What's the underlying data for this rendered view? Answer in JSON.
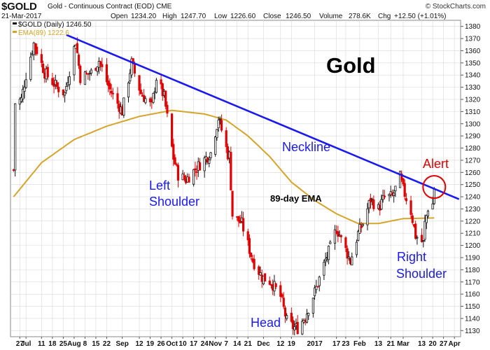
{
  "header": {
    "ticker": "$GOLD",
    "name": "Gold - Continuous Contract (EOD)",
    "exchange": "CME",
    "date": "21-Mar-2017",
    "open_label": "Open",
    "open": "1234.20",
    "high_label": "High",
    "high": "1247.70",
    "low_label": "Low",
    "low": "1226.60",
    "close_label": "Close",
    "close": "1246.50",
    "volume_label": "Volume",
    "volume": "278.6K",
    "chg_label": "Chg",
    "chg": "+12.50 (+1.01%)",
    "credit": "© StockCharts.com"
  },
  "legend": {
    "price": "$GOLD (Daily) 1246.50",
    "ema": "EMA(89) 1222.6"
  },
  "annotations": {
    "title": "Gold",
    "neckline": "Neckline",
    "ema": "89-day EMA",
    "left_shoulder_1": "Left",
    "left_shoulder_2": "Shoulder",
    "head": "Head",
    "right_shoulder_1": "Right",
    "right_shoulder_2": "Shoulder",
    "alert": "Alert"
  },
  "colors": {
    "up": "#111111",
    "down": "#e00000",
    "ema": "#d4a52a",
    "neckline": "#1a1aee",
    "annotation": "#1a1aee",
    "alert": "#e00000",
    "grid": "#d8d8d8"
  },
  "chart_data": {
    "type": "candlestick",
    "title": "Gold",
    "ylim": [
      1125,
      1385
    ],
    "y_ticks": [
      1130,
      1140,
      1150,
      1160,
      1170,
      1180,
      1190,
      1200,
      1210,
      1220,
      1230,
      1240,
      1250,
      1260,
      1270,
      1280,
      1290,
      1300,
      1310,
      1320,
      1330,
      1340,
      1350,
      1360,
      1370,
      1380
    ],
    "y_axis_side": "right",
    "x_ticks": [
      {
        "label": "27",
        "date": "2016-06-27"
      },
      {
        "label": "Jul",
        "date": "2016-07-01"
      },
      {
        "label": "11",
        "date": "2016-07-11"
      },
      {
        "label": "18",
        "date": "2016-07-18"
      },
      {
        "label": "25",
        "date": "2016-07-25"
      },
      {
        "label": "Aug",
        "date": "2016-08-01"
      },
      {
        "label": "8",
        "date": "2016-08-08"
      },
      {
        "label": "15",
        "date": "2016-08-15"
      },
      {
        "label": "22",
        "date": "2016-08-22"
      },
      {
        "label": "Sep",
        "date": "2016-09-01"
      },
      {
        "label": "12",
        "date": "2016-09-12"
      },
      {
        "label": "19",
        "date": "2016-09-19"
      },
      {
        "label": "26",
        "date": "2016-09-26"
      },
      {
        "label": "Oct",
        "date": "2016-10-03"
      },
      {
        "label": "10",
        "date": "2016-10-10"
      },
      {
        "label": "17",
        "date": "2016-10-17"
      },
      {
        "label": "24",
        "date": "2016-10-24"
      },
      {
        "label": "Nov",
        "date": "2016-10-31"
      },
      {
        "label": "7",
        "date": "2016-11-07"
      },
      {
        "label": "14",
        "date": "2016-11-14"
      },
      {
        "label": "21",
        "date": "2016-11-21"
      },
      {
        "label": "Dec",
        "date": "2016-12-01"
      },
      {
        "label": "12",
        "date": "2016-12-12"
      },
      {
        "label": "19",
        "date": "2016-12-19"
      },
      {
        "label": "2017",
        "date": "2017-01-03"
      },
      {
        "label": "17",
        "date": "2017-01-17"
      },
      {
        "label": "23",
        "date": "2017-01-23"
      },
      {
        "label": "Feb",
        "date": "2017-02-01"
      },
      {
        "label": "13",
        "date": "2017-02-13"
      },
      {
        "label": "21",
        "date": "2017-02-21"
      },
      {
        "label": "Mar",
        "date": "2017-03-01"
      },
      {
        "label": "13",
        "date": "2017-03-13"
      },
      {
        "label": "20",
        "date": "2017-03-20"
      },
      {
        "label": "27",
        "date": "2017-03-27"
      },
      {
        "label": "Apr",
        "date": "2017-04-03"
      }
    ],
    "price_anchors": [
      {
        "date": "2016-06-23",
        "close": 1262
      },
      {
        "date": "2016-06-24",
        "close": 1317
      },
      {
        "date": "2016-06-28",
        "close": 1320
      },
      {
        "date": "2016-07-01",
        "close": 1340
      },
      {
        "date": "2016-07-06",
        "close": 1366
      },
      {
        "date": "2016-07-08",
        "close": 1360
      },
      {
        "date": "2016-07-13",
        "close": 1342
      },
      {
        "date": "2016-07-21",
        "close": 1330
      },
      {
        "date": "2016-07-26",
        "close": 1325
      },
      {
        "date": "2016-08-02",
        "close": 1368
      },
      {
        "date": "2016-08-05",
        "close": 1338
      },
      {
        "date": "2016-08-12",
        "close": 1342
      },
      {
        "date": "2016-08-17",
        "close": 1352
      },
      {
        "date": "2016-08-24",
        "close": 1328
      },
      {
        "date": "2016-09-01",
        "close": 1310
      },
      {
        "date": "2016-09-07",
        "close": 1350
      },
      {
        "date": "2016-09-13",
        "close": 1325
      },
      {
        "date": "2016-09-20",
        "close": 1314
      },
      {
        "date": "2016-09-23",
        "close": 1338
      },
      {
        "date": "2016-09-28",
        "close": 1322
      },
      {
        "date": "2016-10-04",
        "close": 1272
      },
      {
        "date": "2016-10-07",
        "close": 1258
      },
      {
        "date": "2016-10-12",
        "close": 1254
      },
      {
        "date": "2016-10-19",
        "close": 1264
      },
      {
        "date": "2016-10-25",
        "close": 1272
      },
      {
        "date": "2016-10-28",
        "close": 1276
      },
      {
        "date": "2016-11-02",
        "close": 1305
      },
      {
        "date": "2016-11-08",
        "close": 1275
      },
      {
        "date": "2016-11-09",
        "close": 1274
      },
      {
        "date": "2016-11-11",
        "close": 1225
      },
      {
        "date": "2016-11-17",
        "close": 1218
      },
      {
        "date": "2016-11-24",
        "close": 1188
      },
      {
        "date": "2016-11-30",
        "close": 1174
      },
      {
        "date": "2016-12-06",
        "close": 1170
      },
      {
        "date": "2016-12-12",
        "close": 1158
      },
      {
        "date": "2016-12-16",
        "close": 1138
      },
      {
        "date": "2016-12-20",
        "close": 1133
      },
      {
        "date": "2016-12-23",
        "close": 1132
      },
      {
        "date": "2016-12-28",
        "close": 1142
      },
      {
        "date": "2017-01-04",
        "close": 1165
      },
      {
        "date": "2017-01-10",
        "close": 1188
      },
      {
        "date": "2017-01-13",
        "close": 1198
      },
      {
        "date": "2017-01-17",
        "close": 1214
      },
      {
        "date": "2017-01-20",
        "close": 1206
      },
      {
        "date": "2017-01-26",
        "close": 1187
      },
      {
        "date": "2017-01-31",
        "close": 1210
      },
      {
        "date": "2017-02-03",
        "close": 1218
      },
      {
        "date": "2017-02-08",
        "close": 1238
      },
      {
        "date": "2017-02-13",
        "close": 1230
      },
      {
        "date": "2017-02-17",
        "close": 1240
      },
      {
        "date": "2017-02-22",
        "close": 1240
      },
      {
        "date": "2017-02-27",
        "close": 1256
      },
      {
        "date": "2017-03-01",
        "close": 1246
      },
      {
        "date": "2017-03-06",
        "close": 1228
      },
      {
        "date": "2017-03-09",
        "close": 1208
      },
      {
        "date": "2017-03-14",
        "close": 1202
      },
      {
        "date": "2017-03-15",
        "close": 1218
      },
      {
        "date": "2017-03-17",
        "close": 1231
      },
      {
        "date": "2017-03-20",
        "close": 1234
      },
      {
        "date": "2017-03-21",
        "close": 1246.5
      }
    ],
    "ema_period": 89,
    "ema_anchors": [
      {
        "date": "2016-06-23",
        "value": 1240
      },
      {
        "date": "2016-07-11",
        "value": 1268
      },
      {
        "date": "2016-08-01",
        "value": 1287
      },
      {
        "date": "2016-08-22",
        "value": 1298
      },
      {
        "date": "2016-09-12",
        "value": 1306
      },
      {
        "date": "2016-10-03",
        "value": 1311
      },
      {
        "date": "2016-10-24",
        "value": 1308
      },
      {
        "date": "2016-11-07",
        "value": 1303
      },
      {
        "date": "2016-11-21",
        "value": 1290
      },
      {
        "date": "2016-12-05",
        "value": 1273
      },
      {
        "date": "2016-12-19",
        "value": 1252
      },
      {
        "date": "2017-01-03",
        "value": 1237
      },
      {
        "date": "2017-01-17",
        "value": 1226
      },
      {
        "date": "2017-01-31",
        "value": 1218
      },
      {
        "date": "2017-02-13",
        "value": 1218
      },
      {
        "date": "2017-03-01",
        "value": 1222
      },
      {
        "date": "2017-03-21",
        "value": 1222.6
      }
    ],
    "neckline": {
      "start": {
        "date": "2016-07-27",
        "value": 1373
      },
      "end": {
        "date": "2017-04-06",
        "value": 1238
      }
    },
    "alert_marker": {
      "date": "2017-03-21",
      "value": 1248
    }
  }
}
